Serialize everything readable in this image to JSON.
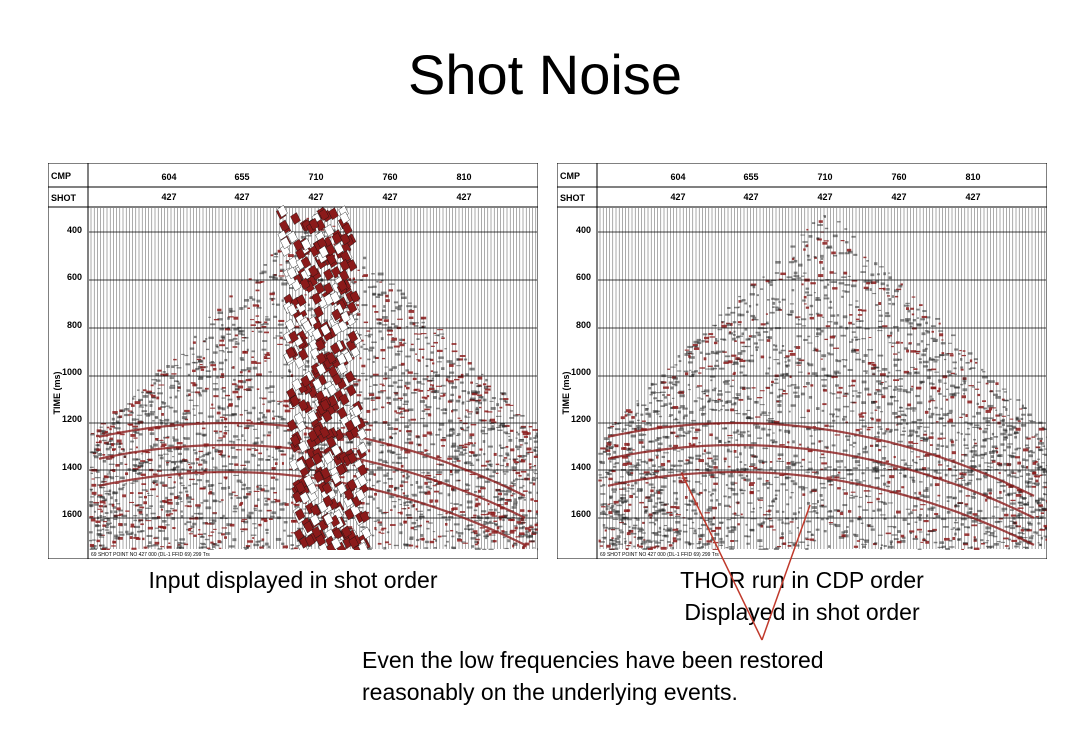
{
  "title": "Shot Noise",
  "panels": [
    {
      "header_labels": [
        "CMP",
        "SHOT"
      ],
      "cmp_values": [
        "604",
        "655",
        "710",
        "760",
        "810"
      ],
      "shot_values": [
        "427",
        "427",
        "427",
        "427",
        "427"
      ],
      "time_axis_label": "TIME (ms)",
      "time_ticks": [
        "400",
        "600",
        "800",
        "1000",
        "1200",
        "1400",
        "1600"
      ],
      "footer_text": "69 SHOT POINT NO 427 000 (DL-1 FFID 69) 299 Trs",
      "noise": "strong"
    },
    {
      "header_labels": [
        "CMP",
        "SHOT"
      ],
      "cmp_values": [
        "604",
        "655",
        "710",
        "760",
        "810"
      ],
      "shot_values": [
        "427",
        "427",
        "427",
        "427",
        "427"
      ],
      "time_axis_label": "TIME (ms)",
      "time_ticks": [
        "400",
        "600",
        "800",
        "1000",
        "1200",
        "1400",
        "1600"
      ],
      "footer_text": "69 SHOT POINT NO 427 000 (DL-1 FFID 69) 299 Trs",
      "noise": "removed"
    }
  ],
  "captions": {
    "left": "Input displayed in shot order",
    "right_line1": "THOR run in CDP order",
    "right_line2": "Displayed in shot order"
  },
  "note": {
    "line1": "Even the low frequencies have been restored",
    "line2": "reasonably on the underlying events."
  },
  "colors": {
    "wiggle_fill": "#8b1a1a",
    "trace_line": "#444444",
    "annotation_arrow": "#c0392b"
  }
}
